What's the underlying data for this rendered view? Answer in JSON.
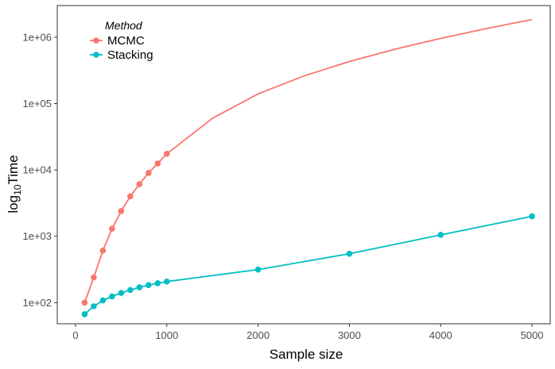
{
  "chart_data": {
    "type": "line",
    "xlabel": "Sample size",
    "ylabel": {
      "base": "log",
      "subscript": "10",
      "rest": "Time"
    },
    "x_ticks": [
      0,
      1000,
      2000,
      3000,
      4000,
      5000
    ],
    "x_tick_labels": [
      "0",
      "1000",
      "2000",
      "3000",
      "4000",
      "5000"
    ],
    "y_scale": "log10",
    "y_ticks": [
      100,
      1000,
      10000,
      100000,
      1000000
    ],
    "y_tick_labels": [
      "1e+02",
      "1e+03",
      "1e+04",
      "1e+05",
      "1e+06"
    ],
    "xlim": [
      -200,
      5200
    ],
    "ylim": [
      48,
      3000000
    ],
    "grid": false,
    "legend": {
      "title": "Method",
      "position": "top-left"
    },
    "series": [
      {
        "name": "MCMC",
        "color": "#F8766D",
        "x": [
          100,
          200,
          300,
          400,
          500,
          600,
          700,
          800,
          900,
          1000
        ],
        "y": [
          100,
          240,
          610,
          1300,
          2400,
          4000,
          6100,
          9000,
          12500,
          17500
        ],
        "curve_extension": {
          "x": [
            1500,
            2000,
            2500,
            3000,
            3500,
            4000,
            4500,
            5000
          ],
          "y": [
            60000,
            140000,
            260000,
            430000,
            660000,
            960000,
            1350000,
            1850000
          ]
        }
      },
      {
        "name": "Stacking",
        "color": "#00BFC4",
        "x": [
          100,
          200,
          300,
          400,
          500,
          600,
          700,
          800,
          900,
          1000,
          2000,
          3000,
          4000,
          5000
        ],
        "y": [
          67,
          88,
          108,
          124,
          140,
          155,
          170,
          184,
          196,
          208,
          315,
          545,
          1050,
          2000
        ]
      }
    ]
  }
}
